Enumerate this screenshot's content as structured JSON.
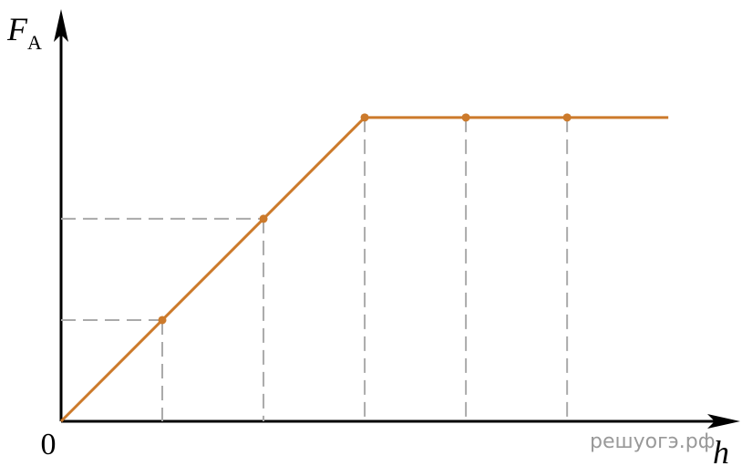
{
  "chart_data": {
    "type": "line",
    "y_label": "F",
    "y_label_subscript": "A",
    "x_label": "h",
    "x": [
      0,
      1,
      2,
      3,
      4,
      5,
      6
    ],
    "series": [
      {
        "color": "#cc7a2b",
        "values": [
          0,
          1,
          2,
          3,
          3,
          3,
          3
        ]
      }
    ],
    "xlim": [
      0,
      6.71
    ],
    "ylim": [
      0,
      4.07
    ],
    "xticks": [
      0
    ],
    "watermark": "решуогэ.рф"
  }
}
